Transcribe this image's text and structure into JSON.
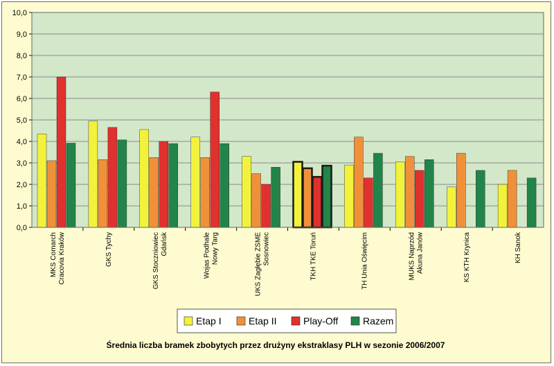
{
  "chart_data": {
    "type": "bar",
    "title": "Średnia liczba bramek zbobytych przez drużyny ekstraklasy PLH w sezonie 2006/2007",
    "xlabel": "",
    "ylabel": "",
    "ylim": [
      0,
      10
    ],
    "yticks": [
      "0,0",
      "1,0",
      "2,0",
      "3,0",
      "4,0",
      "5,0",
      "6,0",
      "7,0",
      "8,0",
      "9,0",
      "10,0"
    ],
    "grid": true,
    "legend_position": "bottom",
    "highlighted_category_index": 5,
    "categories": [
      [
        "MKS Comarch",
        "Cracovia Kraków"
      ],
      [
        "GKS Tychy"
      ],
      [
        "GKS Stoczniowiec",
        "Gdańsk"
      ],
      [
        "Wojas Podhale",
        "Nowy Targ"
      ],
      [
        "UKS Zagłębie ZSME",
        "Sosnowiec"
      ],
      [
        "TKH TKE Toruń"
      ],
      [
        "TH Unia Oświęcim"
      ],
      [
        "MUKS Naprzód",
        "Akuna Janów"
      ],
      [
        "KS KTH Krynica"
      ],
      [
        "KH Sanok"
      ]
    ],
    "series": [
      {
        "name": "Etap I",
        "color": "#f2f23c",
        "values": [
          4.35,
          4.95,
          4.55,
          4.2,
          3.3,
          3.05,
          2.9,
          3.05,
          1.88,
          2.0
        ]
      },
      {
        "name": "Etap II",
        "color": "#f0913a",
        "values": [
          3.1,
          3.15,
          3.25,
          3.25,
          2.5,
          2.75,
          4.2,
          3.3,
          3.45,
          2.65
        ]
      },
      {
        "name": "Play-Off",
        "color": "#e0312e",
        "values": [
          7.0,
          4.65,
          4.0,
          6.3,
          2.0,
          2.35,
          2.3,
          2.65,
          null,
          null
        ]
      },
      {
        "name": "Razem",
        "color": "#23844a",
        "values": [
          3.92,
          4.07,
          3.9,
          3.9,
          2.8,
          2.87,
          3.45,
          3.15,
          2.65,
          2.3
        ]
      }
    ],
    "plot_bg": "#d3e7c9",
    "grid_color": "#8b8b8b"
  }
}
